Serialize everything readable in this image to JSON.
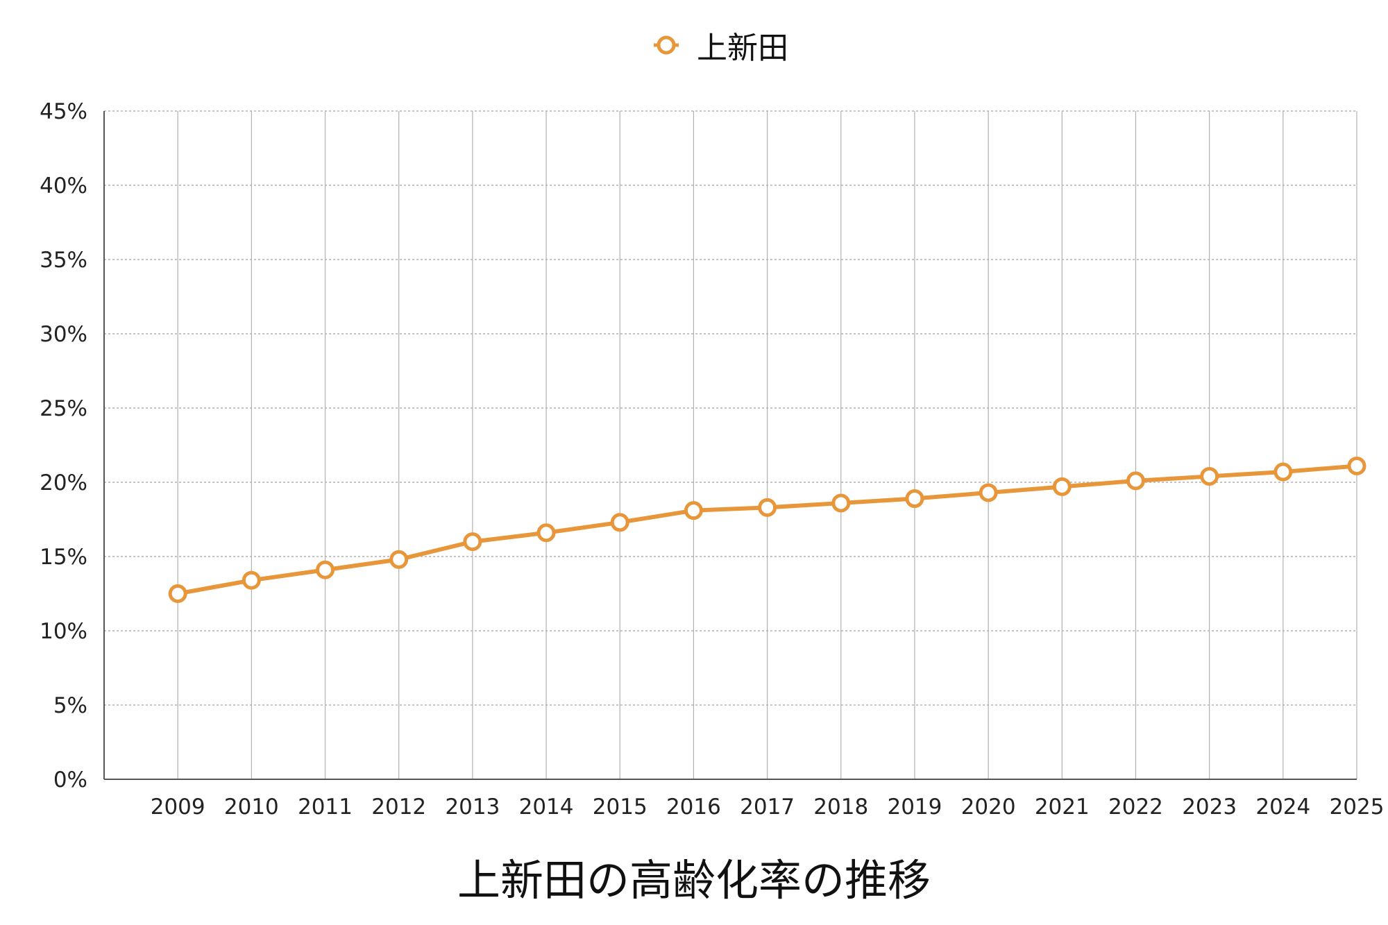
{
  "chart_data": {
    "type": "line",
    "title": "上新田の高齢化率の推移",
    "categories": [
      "2009",
      "2010",
      "2011",
      "2012",
      "2013",
      "2014",
      "2015",
      "2016",
      "2017",
      "2018",
      "2019",
      "2020",
      "2021",
      "2022",
      "2023",
      "2024",
      "2025"
    ],
    "series": [
      {
        "name": "上新田",
        "values": [
          12.5,
          13.4,
          14.1,
          14.8,
          16.0,
          16.6,
          17.3,
          18.1,
          18.3,
          18.6,
          18.9,
          19.3,
          19.7,
          20.1,
          20.4,
          20.7,
          21.1
        ]
      }
    ],
    "yticks": [
      "0%",
      "5%",
      "10%",
      "15%",
      "20%",
      "25%",
      "30%",
      "35%",
      "40%",
      "45%"
    ],
    "ylim": [
      0,
      45
    ],
    "grid": true,
    "legend_position": "top-center",
    "colors": {
      "series": "#E8963A",
      "grid": "#b0b0b0",
      "axis": "#555555"
    }
  }
}
